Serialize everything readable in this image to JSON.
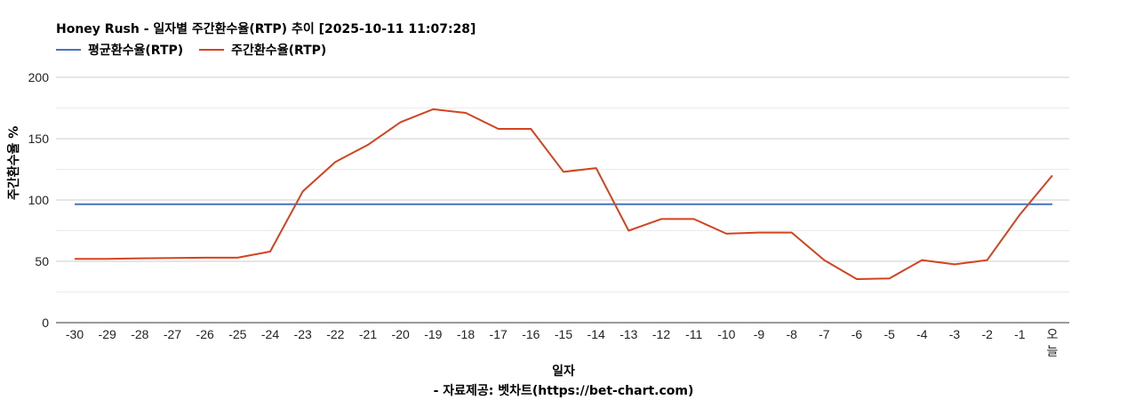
{
  "chart_data": {
    "type": "line",
    "title": "Honey Rush - 일자별 주간환수율(RTP) 추이 [2025-10-11 11:07:28]",
    "xlabel": "일자",
    "ylabel": "주간환수율 %",
    "source": "- 자료제공: 벳차트(https://bet-chart.com)",
    "ylim": [
      0,
      200
    ],
    "yticks": [
      "0",
      "50",
      "100",
      "150",
      "200"
    ],
    "grid": true,
    "legend_position": "top-left",
    "categories": [
      "-30",
      "-29",
      "-28",
      "-27",
      "-26",
      "-25",
      "-24",
      "-23",
      "-22",
      "-21",
      "-20",
      "-19",
      "-18",
      "-17",
      "-16",
      "-15",
      "-14",
      "-13",
      "-12",
      "-11",
      "-10",
      "-9",
      "-8",
      "-7",
      "-6",
      "-5",
      "-4",
      "-3",
      "-2",
      "-1",
      "오늘"
    ],
    "series": [
      {
        "name": "평균환수율(RTP)",
        "color": "#4472c4",
        "values": [
          96.5,
          96.5,
          96.5,
          96.5,
          96.5,
          96.5,
          96.5,
          96.5,
          96.5,
          96.5,
          96.5,
          96.5,
          96.5,
          96.5,
          96.5,
          96.5,
          96.5,
          96.5,
          96.5,
          96.5,
          96.5,
          96.5,
          96.5,
          96.5,
          96.5,
          96.5,
          96.5,
          96.5,
          96.5,
          96.5,
          96.5
        ]
      },
      {
        "name": "주간환수율(RTP)",
        "color": "#d4421e",
        "values": [
          52,
          52,
          52.5,
          52.7,
          53,
          53,
          58,
          107,
          131,
          145,
          163.5,
          174,
          171,
          158,
          158,
          123,
          126,
          75,
          84.5,
          84.5,
          72.5,
          73.5,
          73.5,
          51,
          35.5,
          36,
          51,
          47.5,
          51,
          88,
          120
        ]
      }
    ]
  }
}
